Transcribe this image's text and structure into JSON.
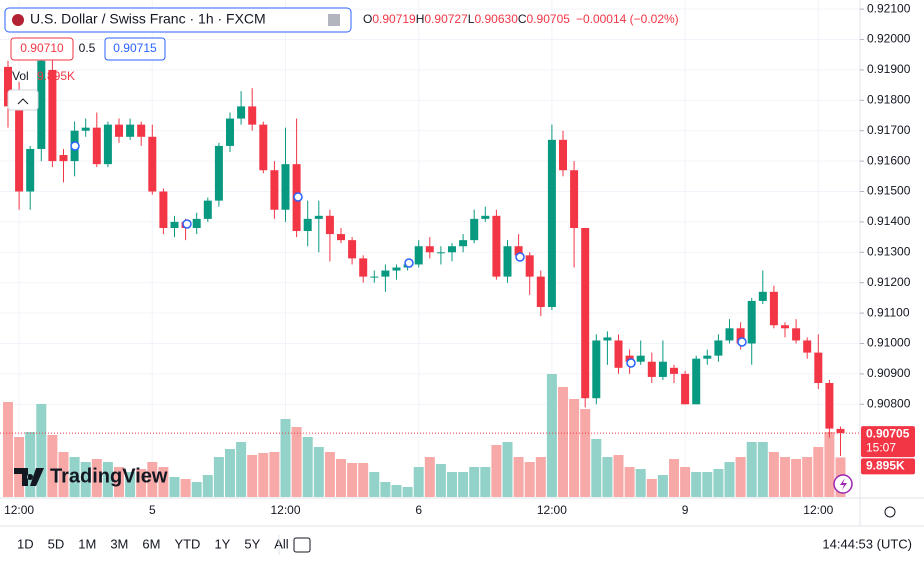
{
  "chart_data": {
    "type": "candlestick",
    "symbol": "U.S. Dollar / Swiss Franc · 1h · FXCM",
    "legend": {
      "o_key": "O",
      "o": "0.90719",
      "h_key": "H",
      "h": "0.90727",
      "l_key": "L",
      "l": "0.90630",
      "c_key": "C",
      "c": "0.90705",
      "change": "−0.00014 (−0.02%)"
    },
    "bid": "0.90710",
    "spread": "0.5",
    "ask": "0.90715",
    "volume_key": "Vol",
    "last_volume_label": "9.895K",
    "countdown": "15:07",
    "brand": "TradingView",
    "categories": [
      null,
      "12:00",
      null,
      null,
      null,
      null,
      null,
      null,
      null,
      null,
      null,
      null,
      null,
      "5",
      null,
      null,
      null,
      null,
      null,
      null,
      null,
      null,
      null,
      null,
      null,
      "12:00",
      null,
      null,
      null,
      null,
      null,
      null,
      null,
      null,
      null,
      null,
      null,
      "6",
      null,
      null,
      null,
      null,
      null,
      null,
      null,
      null,
      null,
      null,
      null,
      "12:00",
      null,
      null,
      null,
      null,
      null,
      null,
      null,
      null,
      null,
      null,
      null,
      "9",
      null,
      null,
      null,
      null,
      null,
      null,
      null,
      null,
      null,
      null,
      null,
      "12:00",
      null,
      null
    ],
    "open": [
      0.9191,
      0.9183,
      0.915,
      0.9164,
      0.919,
      0.9162,
      0.916,
      0.917,
      0.9171,
      0.9159,
      0.9172,
      0.9168,
      0.9172,
      0.9168,
      0.915,
      0.9138,
      0.914,
      0.9138,
      0.9141,
      0.9147,
      0.9165,
      0.9174,
      0.9178,
      0.9172,
      0.9157,
      0.9144,
      0.9159,
      0.9137,
      0.9141,
      0.9142,
      0.9136,
      0.9134,
      0.9128,
      0.9122,
      0.9122,
      0.9124,
      0.9125,
      0.9126,
      0.9132,
      0.913,
      0.913,
      0.9132,
      0.9134,
      0.9141,
      0.9142,
      0.9122,
      0.9132,
      0.9129,
      0.9122,
      0.9112,
      0.9167,
      0.9157,
      0.9138,
      0.9082,
      0.9101,
      0.9101,
      0.9096,
      0.9094,
      0.9094,
      0.9089,
      0.9092,
      0.909,
      0.908,
      0.9095,
      0.9096,
      0.9101,
      0.9105,
      0.91,
      0.9114,
      0.9117,
      0.9106,
      0.9105,
      0.9101,
      0.9097,
      0.9087,
      0.90719
    ],
    "high": [
      0.9193,
      0.9186,
      0.9165,
      0.9195,
      0.9195,
      0.9164,
      0.9173,
      0.9174,
      0.9176,
      0.9173,
      0.9174,
      0.9174,
      0.9173,
      0.9172,
      0.9151,
      0.9142,
      0.9141,
      0.9143,
      0.9148,
      0.9166,
      0.9176,
      0.9183,
      0.9184,
      0.9173,
      0.916,
      0.9171,
      0.9174,
      0.9147,
      0.9147,
      0.9144,
      0.9138,
      0.9135,
      0.9129,
      0.9124,
      0.9126,
      0.9126,
      0.9127,
      0.9134,
      0.9135,
      0.9132,
      0.9133,
      0.9136,
      0.9144,
      0.9145,
      0.9144,
      0.9134,
      0.9136,
      0.913,
      0.9124,
      0.9172,
      0.917,
      0.916,
      0.9138,
      0.9103,
      0.9104,
      0.9103,
      0.9098,
      0.9101,
      0.9097,
      0.9101,
      0.9093,
      0.9091,
      0.9096,
      0.9098,
      0.9103,
      0.9108,
      0.9107,
      0.9115,
      0.9124,
      0.9119,
      0.9107,
      0.9108,
      0.9102,
      0.9103,
      0.9088,
      0.90727
    ],
    "low": [
      0.9171,
      0.9144,
      0.9144,
      0.916,
      0.9158,
      0.9153,
      0.9155,
      0.9168,
      0.9158,
      0.9158,
      0.9166,
      0.9167,
      0.9165,
      0.9149,
      0.9136,
      0.9135,
      0.9134,
      0.9136,
      0.914,
      0.9145,
      0.9163,
      0.9172,
      0.917,
      0.9156,
      0.9141,
      0.914,
      0.9135,
      0.9132,
      0.913,
      0.9127,
      0.9133,
      0.9126,
      0.912,
      0.912,
      0.9117,
      0.9121,
      0.9124,
      0.9125,
      0.9128,
      0.9126,
      0.9127,
      0.913,
      0.9133,
      0.914,
      0.9121,
      0.912,
      0.9127,
      0.9116,
      0.9109,
      0.9111,
      0.9155,
      0.9125,
      0.9079,
      0.908,
      0.9093,
      0.909,
      0.909,
      0.9093,
      0.9087,
      0.9088,
      0.9087,
      0.908,
      0.908,
      0.9093,
      0.9094,
      0.91,
      0.9098,
      0.9093,
      0.9113,
      0.9105,
      0.9102,
      0.91,
      0.9095,
      0.9085,
      0.9069,
      0.9063
    ],
    "close": [
      0.9178,
      0.915,
      0.9164,
      0.9193,
      0.916,
      0.916,
      0.917,
      0.9171,
      0.9159,
      0.9172,
      0.9168,
      0.9172,
      0.9168,
      0.915,
      0.9138,
      0.914,
      0.9138,
      0.9141,
      0.9147,
      0.9165,
      0.9174,
      0.9178,
      0.9172,
      0.9157,
      0.9144,
      0.9159,
      0.9137,
      0.9141,
      0.9142,
      0.9136,
      0.9134,
      0.9128,
      0.9122,
      0.9122,
      0.9124,
      0.9125,
      0.9126,
      0.9132,
      0.913,
      0.913,
      0.9132,
      0.9134,
      0.9141,
      0.9142,
      0.9122,
      0.9132,
      0.9129,
      0.9122,
      0.9112,
      0.9167,
      0.9157,
      0.9138,
      0.9082,
      0.9101,
      0.9102,
      0.9092,
      0.9094,
      0.9096,
      0.9089,
      0.9094,
      0.909,
      0.908,
      0.9095,
      0.9096,
      0.9101,
      0.9105,
      0.91,
      0.9114,
      0.9117,
      0.9106,
      0.9105,
      0.9101,
      0.9097,
      0.9087,
      0.9072,
      0.90705
    ],
    "volume": [
      23750,
      15000,
      16250,
      23250,
      15500,
      11250,
      10000,
      8750,
      9500,
      8750,
      7500,
      6250,
      7000,
      8750,
      7500,
      5000,
      4500,
      3750,
      5500,
      10000,
      12000,
      13750,
      10500,
      11000,
      11250,
      19500,
      17500,
      15000,
      12500,
      11250,
      9500,
      8500,
      8500,
      6250,
      3750,
      3000,
      2500,
      7500,
      10000,
      8250,
      6250,
      6250,
      7500,
      7500,
      13000,
      13750,
      10000,
      8750,
      10000,
      30750,
      27500,
      24500,
      22000,
      14500,
      10000,
      10500,
      7500,
      7000,
      4500,
      5500,
      9500,
      7500,
      6250,
      6250,
      7000,
      8750,
      10000,
      13750,
      13750,
      11250,
      10000,
      9500,
      10000,
      12500,
      16250,
      9895
    ],
    "up_color": "#089981",
    "down_color": "#f23645",
    "up_volume_color": "#92d2c8",
    "down_volume_color": "#f7a9a7",
    "ylim": [
      0.90495,
      0.9213
    ],
    "yticks": [
      {
        "value": 0.921,
        "label": "0.92100"
      },
      {
        "value": 0.92,
        "label": "0.92000"
      },
      {
        "value": 0.919,
        "label": "0.91900"
      },
      {
        "value": 0.918,
        "label": "0.91800"
      },
      {
        "value": 0.917,
        "label": "0.91700"
      },
      {
        "value": 0.916,
        "label": "0.91600"
      },
      {
        "value": 0.915,
        "label": "0.91500"
      },
      {
        "value": 0.914,
        "label": "0.91400"
      },
      {
        "value": 0.913,
        "label": "0.91300"
      },
      {
        "value": 0.912,
        "label": "0.91200"
      },
      {
        "value": 0.911,
        "label": "0.91100"
      },
      {
        "value": 0.91,
        "label": "0.91000"
      },
      {
        "value": 0.909,
        "label": "0.90900"
      },
      {
        "value": 0.908,
        "label": "0.90800"
      }
    ],
    "grid": true,
    "ranges": [
      "1D",
      "5D",
      "1M",
      "3M",
      "6M",
      "YTD",
      "1Y",
      "5Y",
      "All"
    ],
    "clock": "14:44:53 (UTC)"
  }
}
